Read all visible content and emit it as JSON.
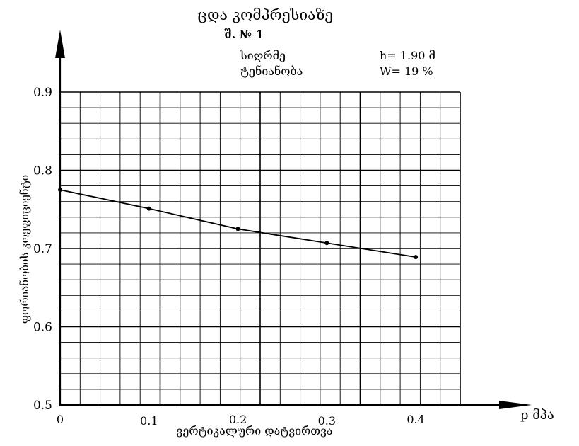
{
  "chart_data": {
    "type": "line",
    "title": "ცდა კომპრესიაზე",
    "subtitle": "შ. № 1",
    "info": [
      {
        "label": "სიღრმე",
        "value": "h= 1.90  მ"
      },
      {
        "label": "ტენიანობა",
        "value": "W= 19  %"
      }
    ],
    "xlabel": "ვერტიკალური დატვირთვა",
    "x_unit": "p მპა",
    "ylabel": "ფორიანობის კოეფიციენტი",
    "xlim": [
      0,
      0.45
    ],
    "ylim": [
      0.5,
      0.9
    ],
    "x_ticks": [
      "0",
      "0.1",
      "0.2",
      "0.3",
      "0.4"
    ],
    "y_ticks": [
      "0.5",
      "0.6",
      "0.7",
      "0.8",
      "0.9"
    ],
    "grid": true,
    "series": [
      {
        "x": [
          0,
          0.1,
          0.2,
          0.3,
          0.4
        ],
        "y": [
          0.775,
          0.751,
          0.725,
          0.707,
          0.689
        ]
      }
    ]
  }
}
